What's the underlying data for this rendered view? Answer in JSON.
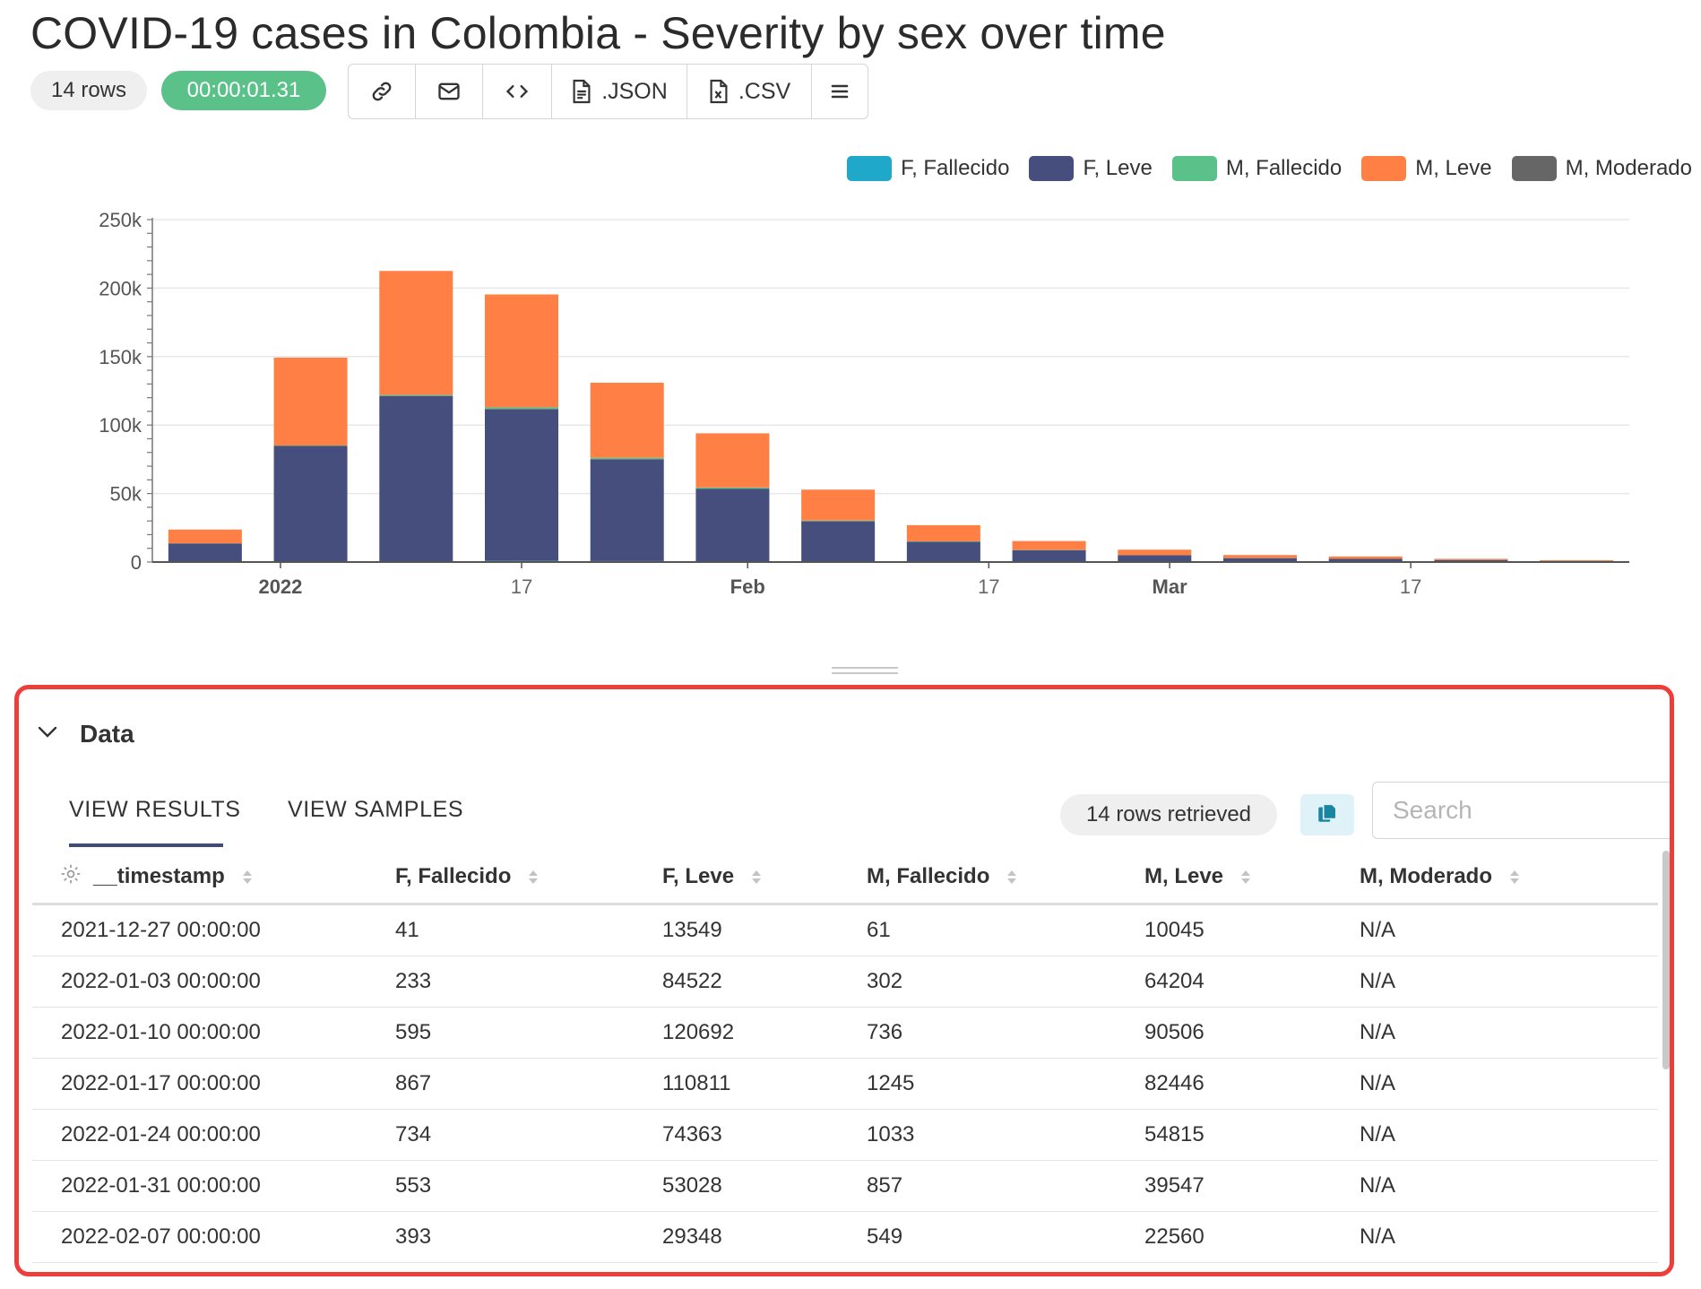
{
  "page": {
    "title": "COVID-19 cases in Colombia - Severity by sex over time",
    "rows_pill": "14 rows",
    "timer_pill": "00:00:01.31"
  },
  "toolbar": {
    "buttons": [
      {
        "icon": "link-icon",
        "label": ""
      },
      {
        "icon": "mail-icon",
        "label": ""
      },
      {
        "icon": "code-icon",
        "label": ""
      },
      {
        "icon": "file-icon",
        "label": ".JSON"
      },
      {
        "icon": "spreadsheet-icon",
        "label": ".CSV"
      },
      {
        "icon": "menu-icon",
        "label": ""
      }
    ]
  },
  "legend": [
    {
      "name": "F, Fallecido",
      "color": "#1fa8c9"
    },
    {
      "name": "F, Leve",
      "color": "#454e7c"
    },
    {
      "name": "M, Fallecido",
      "color": "#5ac189"
    },
    {
      "name": "M, Leve",
      "color": "#ff7f44"
    },
    {
      "name": "M, Moderado",
      "color": "#666666"
    }
  ],
  "chart_data": {
    "type": "bar",
    "stacked": true,
    "title": "",
    "xlabel": "",
    "ylabel": "",
    "x": [
      "2021-12-27",
      "2022-01-03",
      "2022-01-10",
      "2022-01-17",
      "2022-01-24",
      "2022-01-31",
      "2022-02-07",
      "2022-02-14",
      "2022-02-21",
      "2022-02-28",
      "2022-03-07",
      "2022-03-14",
      "2022-03-21",
      "2022-03-28"
    ],
    "x_tick_labels": [
      "2022",
      "17",
      "Feb",
      "17",
      "Mar",
      "17"
    ],
    "x_tick_dates": [
      "2022-01-01",
      "2022-01-17",
      "2022-02-01",
      "2022-02-17",
      "2022-03-01",
      "2022-03-17"
    ],
    "x_tick_bold": [
      true,
      false,
      true,
      false,
      true,
      false
    ],
    "y_tick_labels": [
      "0",
      "50k",
      "100k",
      "150k",
      "200k",
      "250k"
    ],
    "y_ticks": [
      0,
      50000,
      100000,
      150000,
      200000,
      250000
    ],
    "ylim": [
      0,
      250000
    ],
    "grid": true,
    "legend_position": "top-right",
    "series": [
      {
        "name": "F, Fallecido",
        "color": "#1fa8c9",
        "values": [
          41,
          233,
          595,
          867,
          734,
          553,
          393,
          260,
          150,
          90,
          50,
          30,
          15,
          8
        ]
      },
      {
        "name": "F, Leve",
        "color": "#454e7c",
        "values": [
          13549,
          84522,
          120692,
          110811,
          74363,
          53028,
          29348,
          14500,
          8500,
          4800,
          2800,
          2300,
          1400,
          800
        ]
      },
      {
        "name": "M, Fallecido",
        "color": "#5ac189",
        "values": [
          61,
          302,
          736,
          1245,
          1033,
          857,
          549,
          350,
          200,
          120,
          70,
          40,
          20,
          10
        ]
      },
      {
        "name": "M, Leve",
        "color": "#ff7f44",
        "values": [
          10045,
          64204,
          90506,
          82446,
          54815,
          39547,
          22560,
          11800,
          6500,
          4000,
          2200,
          1700,
          900,
          500
        ]
      },
      {
        "name": "M, Moderado",
        "color": "#666666",
        "values": [
          null,
          null,
          null,
          null,
          null,
          null,
          null,
          null,
          null,
          null,
          null,
          null,
          null,
          null
        ]
      }
    ]
  },
  "data_panel": {
    "title": "Data",
    "tabs": [
      "VIEW RESULTS",
      "VIEW SAMPLES"
    ],
    "rows_retrieved": "14 rows retrieved",
    "search_placeholder": "Search",
    "columns": [
      "__timestamp",
      "F, Fallecido",
      "F, Leve",
      "M, Fallecido",
      "M, Leve",
      "M, Moderado"
    ],
    "rows": [
      [
        "2021-12-27 00:00:00",
        "41",
        "13549",
        "61",
        "10045",
        "N/A"
      ],
      [
        "2022-01-03 00:00:00",
        "233",
        "84522",
        "302",
        "64204",
        "N/A"
      ],
      [
        "2022-01-10 00:00:00",
        "595",
        "120692",
        "736",
        "90506",
        "N/A"
      ],
      [
        "2022-01-17 00:00:00",
        "867",
        "110811",
        "1245",
        "82446",
        "N/A"
      ],
      [
        "2022-01-24 00:00:00",
        "734",
        "74363",
        "1033",
        "54815",
        "N/A"
      ],
      [
        "2022-01-31 00:00:00",
        "553",
        "53028",
        "857",
        "39547",
        "N/A"
      ],
      [
        "2022-02-07 00:00:00",
        "393",
        "29348",
        "549",
        "22560",
        "N/A"
      ]
    ]
  }
}
